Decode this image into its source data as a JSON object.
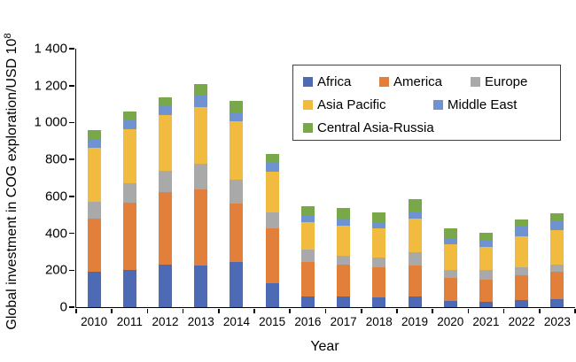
{
  "figure": {
    "y_axis_title_main": "Global investment in COG exploration/USD 10",
    "y_axis_title_sup": "8",
    "x_axis_title": "Year"
  },
  "chart_data": {
    "type": "bar",
    "stacked": true,
    "title": "",
    "xlabel": "Year",
    "ylabel": "Global investment in COG exploration/USD 10^8",
    "ylim": [
      0,
      1400
    ],
    "ytick_step": 200,
    "ytick_labels": [
      "0",
      "200",
      "400",
      "600",
      "800",
      "1 000",
      "1 200",
      "1 400"
    ],
    "grid": false,
    "categories": [
      "2010",
      "2011",
      "2012",
      "2013",
      "2014",
      "2015",
      "2016",
      "2017",
      "2018",
      "2019",
      "2020",
      "2021",
      "2022",
      "2023"
    ],
    "series": [
      {
        "name": "Africa",
        "color": "#4C6BB4",
        "values": [
          190,
          200,
          230,
          225,
          245,
          130,
          60,
          60,
          55,
          60,
          35,
          30,
          40,
          45
        ]
      },
      {
        "name": "America",
        "color": "#E2803B",
        "values": [
          290,
          365,
          395,
          415,
          315,
          295,
          185,
          170,
          160,
          165,
          125,
          120,
          135,
          145
        ]
      },
      {
        "name": "Europe",
        "color": "#A9A9A9",
        "values": [
          90,
          105,
          115,
          135,
          130,
          90,
          65,
          50,
          55,
          70,
          40,
          50,
          40,
          40
        ]
      },
      {
        "name": "Asia Pacific",
        "color": "#F0BB3F",
        "values": [
          295,
          295,
          300,
          310,
          315,
          220,
          150,
          160,
          155,
          185,
          140,
          125,
          170,
          185
        ]
      },
      {
        "name": "Middle East",
        "color": "#6F92D0",
        "values": [
          45,
          45,
          50,
          60,
          50,
          45,
          35,
          35,
          35,
          40,
          35,
          35,
          50,
          50
        ]
      },
      {
        "name": "Central Asia-Russia",
        "color": "#79A848",
        "values": [
          50,
          50,
          45,
          65,
          60,
          50,
          50,
          60,
          55,
          65,
          50,
          45,
          40,
          45
        ]
      }
    ],
    "legend": {
      "position": "upper-right-inside",
      "rows": [
        [
          "Africa",
          "America",
          "Europe"
        ],
        [
          "Asia Pacific",
          "Middle East"
        ],
        [
          "Central Asia-Russia"
        ]
      ]
    }
  }
}
